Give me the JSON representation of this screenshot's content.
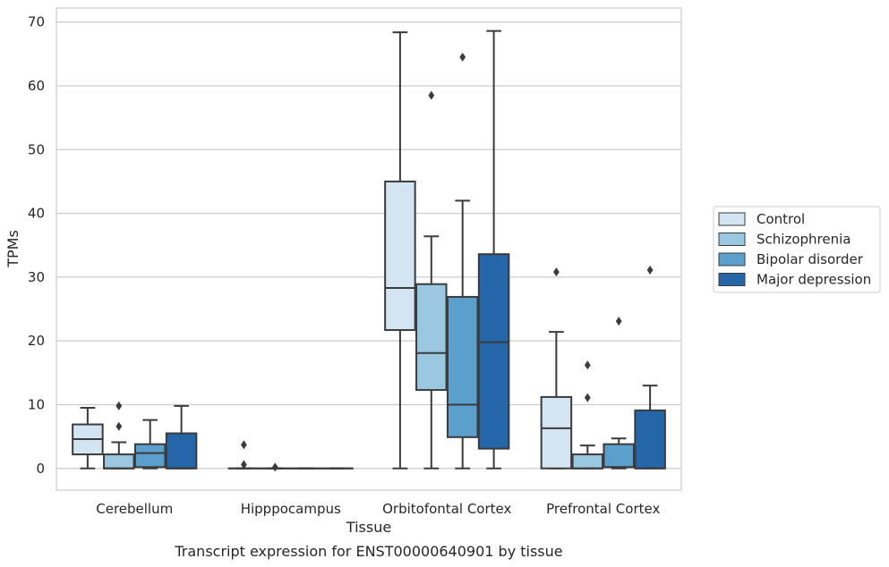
{
  "chart_data": {
    "type": "box",
    "title": "Transcript expression for ENST00000640901 by tissue",
    "xlabel": "Tissue",
    "ylabel": "TPMs",
    "ylim": [
      -3.4,
      72.2
    ],
    "yticks": [
      0,
      10,
      20,
      30,
      40,
      50,
      60,
      70
    ],
    "grid": true,
    "legend_position": "right",
    "categories": [
      "Cerebellum",
      "Hipppocampus",
      "Orbitofontal Cortex",
      "Prefrontal Cortex"
    ],
    "series": [
      {
        "name": "Control",
        "color": "#d3e4f3",
        "boxes": [
          {
            "whislo": 0,
            "q1": 2.2,
            "med": 4.6,
            "q3": 6.9,
            "whishi": 9.5,
            "fliers": []
          },
          {
            "whislo": 0,
            "q1": 0,
            "med": 0,
            "q3": 0,
            "whishi": 0,
            "fliers": [
              3.7,
              0.6
            ]
          },
          {
            "whislo": 0,
            "q1": 21.7,
            "med": 28.3,
            "q3": 45.0,
            "whishi": 68.4,
            "fliers": []
          },
          {
            "whislo": 0,
            "q1": 0,
            "med": 6.3,
            "q3": 11.2,
            "whishi": 21.4,
            "fliers": [
              30.8
            ]
          }
        ]
      },
      {
        "name": "Schizophrenia",
        "color": "#9ac8e0",
        "boxes": [
          {
            "whislo": 0,
            "q1": 0,
            "med": 0,
            "q3": 2.2,
            "whishi": 4.1,
            "fliers": [
              9.8,
              6.6
            ]
          },
          {
            "whislo": 0,
            "q1": 0,
            "med": 0,
            "q3": 0,
            "whishi": 0,
            "fliers": [
              0.2
            ]
          },
          {
            "whislo": 0,
            "q1": 12.3,
            "med": 18.1,
            "q3": 28.9,
            "whishi": 36.4,
            "fliers": [
              58.5
            ]
          },
          {
            "whislo": 0,
            "q1": 0,
            "med": 0,
            "q3": 2.2,
            "whishi": 3.6,
            "fliers": [
              16.2,
              11.1
            ]
          }
        ]
      },
      {
        "name": "Bipolar disorder",
        "color": "#5b9fcd",
        "boxes": [
          {
            "whislo": 0,
            "q1": 0.2,
            "med": 2.4,
            "q3": 3.8,
            "whishi": 7.6,
            "fliers": []
          },
          {
            "whislo": 0,
            "q1": 0,
            "med": 0,
            "q3": 0,
            "whishi": 0,
            "fliers": []
          },
          {
            "whislo": 0,
            "q1": 4.9,
            "med": 10.0,
            "q3": 26.9,
            "whishi": 42.0,
            "fliers": [
              64.5
            ]
          },
          {
            "whislo": 0,
            "q1": 0.2,
            "med": 0.2,
            "q3": 3.8,
            "whishi": 4.7,
            "fliers": [
              23.1
            ]
          }
        ]
      },
      {
        "name": "Major depression",
        "color": "#2466a8",
        "boxes": [
          {
            "whislo": 0,
            "q1": 0,
            "med": 0,
            "q3": 5.5,
            "whishi": 9.8,
            "fliers": []
          },
          {
            "whislo": 0,
            "q1": 0,
            "med": 0,
            "q3": 0,
            "whishi": 0,
            "fliers": []
          },
          {
            "whislo": 0,
            "q1": 3.1,
            "med": 19.8,
            "q3": 33.6,
            "whishi": 68.6,
            "fliers": []
          },
          {
            "whislo": 0,
            "q1": 0,
            "med": 0,
            "q3": 9.1,
            "whishi": 13.0,
            "fliers": [
              31.1
            ]
          }
        ]
      }
    ]
  }
}
